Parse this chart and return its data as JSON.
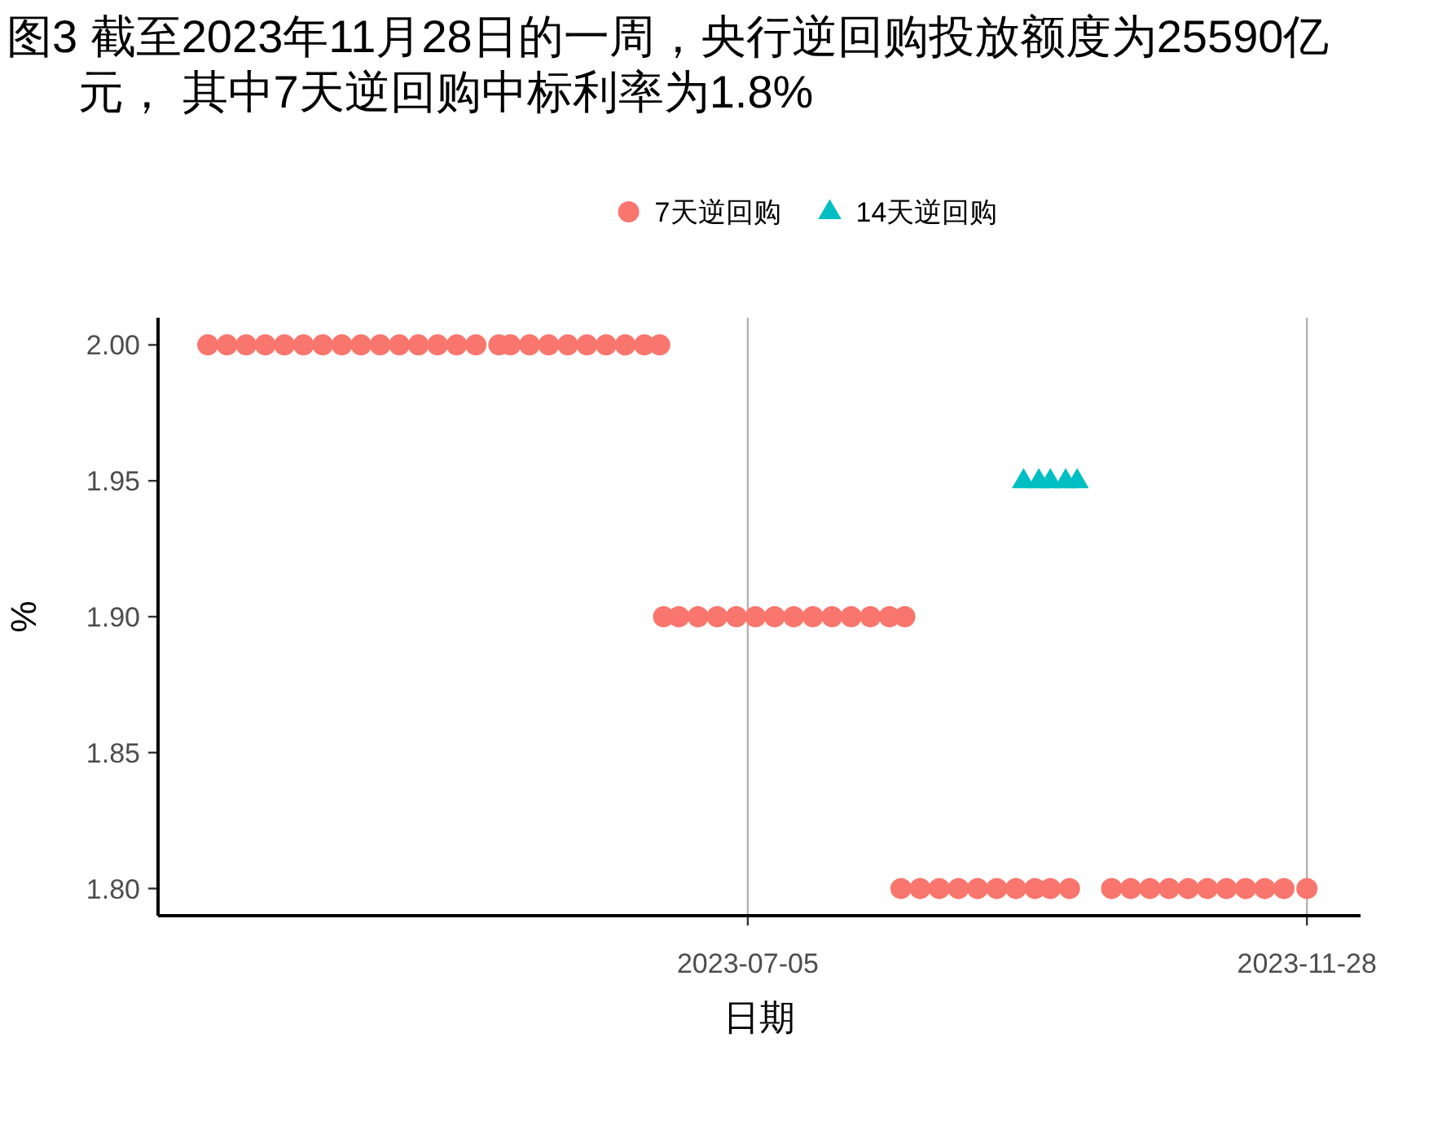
{
  "chart_data": {
    "type": "scatter",
    "title": "图3  截至2023年11月28日的一周，央行逆回购投放额度为25590亿元， 其中7天逆回购中标利率为1.8%",
    "xlabel": "日期",
    "ylabel": "%",
    "xlim": [
      "2023-02-01",
      "2023-12-12"
    ],
    "xticks": [
      "2023-07-05",
      "2023-11-28"
    ],
    "ylim": [
      1.79,
      2.01
    ],
    "yticks": [
      {
        "value": 1.8,
        "label": "1.80"
      },
      1.85,
      {
        "value": 1.9,
        "label": "1.90"
      },
      1.95,
      {
        "value": 2.0,
        "label": "2.00"
      }
    ],
    "grid": "x",
    "legend": "top",
    "series": [
      {
        "name": "7天逆回购",
        "color": "#f8766d",
        "marker": "circle",
        "x": [
          "2023-02-14",
          "2023-02-19",
          "2023-02-24",
          "2023-03-01",
          "2023-03-06",
          "2023-03-11",
          "2023-03-16",
          "2023-03-21",
          "2023-03-26",
          "2023-03-31",
          "2023-04-05",
          "2023-04-10",
          "2023-04-15",
          "2023-04-20",
          "2023-04-25",
          "2023-05-01",
          "2023-05-04",
          "2023-05-09",
          "2023-05-14",
          "2023-05-19",
          "2023-05-24",
          "2023-05-29",
          "2023-06-03",
          "2023-06-08",
          "2023-06-12",
          "2023-06-13",
          "2023-06-17",
          "2023-06-22",
          "2023-06-27",
          "2023-07-02",
          "2023-07-07",
          "2023-07-12",
          "2023-07-17",
          "2023-07-22",
          "2023-07-27",
          "2023-08-01",
          "2023-08-06",
          "2023-08-11",
          "2023-08-15",
          "2023-08-14",
          "2023-08-19",
          "2023-08-24",
          "2023-08-29",
          "2023-09-03",
          "2023-09-08",
          "2023-09-13",
          "2023-09-18",
          "2023-09-22",
          "2023-09-27",
          "2023-10-08",
          "2023-10-13",
          "2023-10-18",
          "2023-10-23",
          "2023-10-28",
          "2023-11-02",
          "2023-11-07",
          "2023-11-12",
          "2023-11-17",
          "2023-11-22",
          "2023-11-28"
        ],
        "values": [
          2.0,
          2.0,
          2.0,
          2.0,
          2.0,
          2.0,
          2.0,
          2.0,
          2.0,
          2.0,
          2.0,
          2.0,
          2.0,
          2.0,
          2.0,
          2.0,
          2.0,
          2.0,
          2.0,
          2.0,
          2.0,
          2.0,
          2.0,
          2.0,
          2.0,
          1.9,
          1.9,
          1.9,
          1.9,
          1.9,
          1.9,
          1.9,
          1.9,
          1.9,
          1.9,
          1.9,
          1.9,
          1.9,
          1.9,
          1.8,
          1.8,
          1.8,
          1.8,
          1.8,
          1.8,
          1.8,
          1.8,
          1.8,
          1.8,
          1.8,
          1.8,
          1.8,
          1.8,
          1.8,
          1.8,
          1.8,
          1.8,
          1.8,
          1.8,
          1.8
        ]
      },
      {
        "name": "14天逆回购",
        "color": "#00bfc4",
        "marker": "triangle",
        "x": [
          "2023-09-15",
          "2023-09-19",
          "2023-09-22",
          "2023-09-26",
          "2023-09-29"
        ],
        "values": [
          1.95,
          1.95,
          1.95,
          1.95,
          1.95
        ]
      }
    ]
  }
}
